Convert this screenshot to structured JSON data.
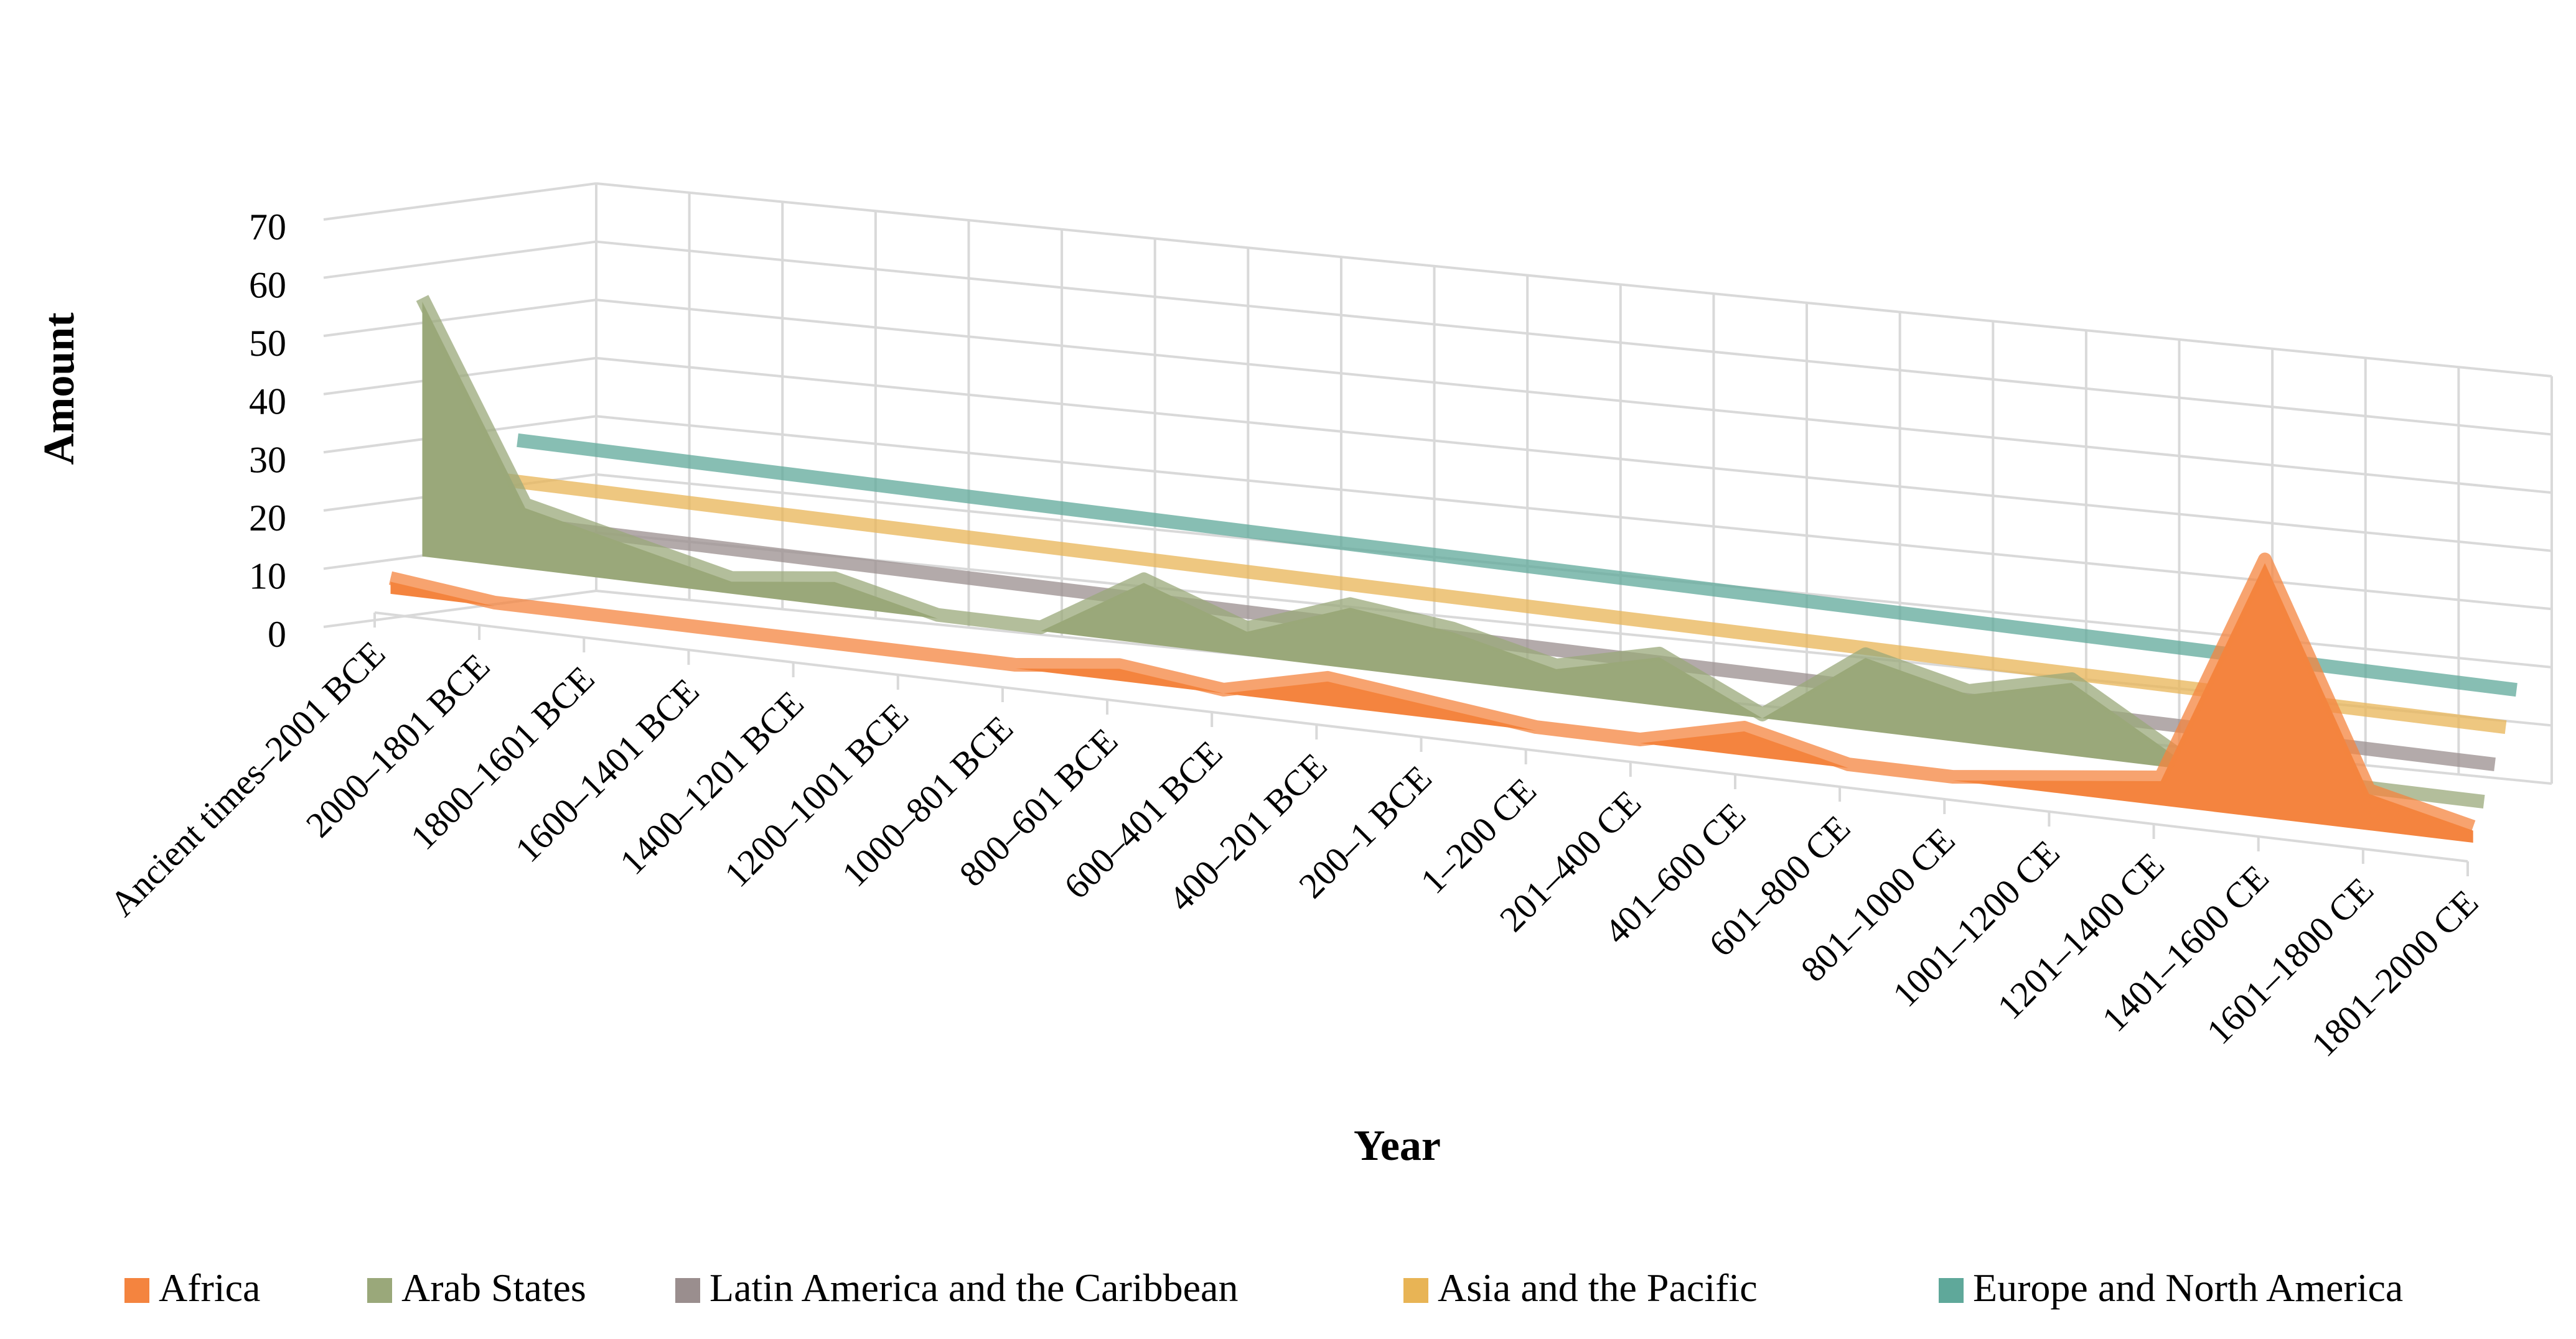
{
  "chart_data": {
    "type": "area",
    "style": "3d-area",
    "title": "",
    "xlabel": "Year",
    "ylabel": "Amount",
    "ylim": [
      0,
      70
    ],
    "yticks": [
      0,
      10,
      20,
      30,
      40,
      50,
      60,
      70
    ],
    "grid": true,
    "legend_position": "bottom",
    "categories": [
      "Ancient times–2001 BCE",
      "2000–1801 BCE",
      "1800–1601 BCE",
      "1600–1401 BCE",
      "1400–1201 BCE",
      "1200–1001 BCE",
      "1000–801 BCE",
      "800–601 BCE",
      "600–401 BCE",
      "400–201 BCE",
      "200–1 BCE",
      "1–200 CE",
      "201–400 CE",
      "401–600 CE",
      "601–800 CE",
      "801–1000 CE",
      "1001–1200 CE",
      "1201–1400 CE",
      "1401–1600 CE",
      "1601–1800 CE",
      "1801–2000 CE"
    ],
    "series": [
      {
        "name": "Africa",
        "color": "#f4843f",
        "values": [
          1,
          0,
          0,
          0,
          0,
          0,
          0,
          1,
          0,
          2,
          1,
          0,
          0,
          2,
          0,
          0,
          1,
          2,
          21,
          3,
          1
        ]
      },
      {
        "name": "Arab States",
        "color": "#9aa87a",
        "values": [
          21,
          5,
          3,
          1,
          2,
          0,
          0,
          5,
          2,
          5,
          4,
          2,
          4,
          0,
          6,
          4,
          6,
          1,
          0,
          0,
          0
        ]
      },
      {
        "name": "Latin America and the Caribbean",
        "color": "#9a8e8e",
        "values": [
          0,
          0,
          0,
          0,
          0,
          0,
          0,
          0,
          0,
          0,
          0,
          0,
          0,
          0,
          0,
          0,
          0,
          0,
          0,
          0,
          0
        ]
      },
      {
        "name": "Asia and the Pacific",
        "color": "#e8b455",
        "values": [
          0,
          0,
          0,
          0,
          0,
          0,
          0,
          0,
          0,
          0,
          0,
          0,
          0,
          0,
          0,
          0,
          0,
          0,
          0,
          0,
          0
        ]
      },
      {
        "name": "Europe and North America",
        "color": "#5fa89a",
        "values": [
          0,
          0,
          0,
          0,
          0,
          0,
          0,
          0,
          0,
          0,
          0,
          0,
          0,
          0,
          0,
          0,
          0,
          0,
          0,
          0,
          0
        ]
      }
    ]
  }
}
